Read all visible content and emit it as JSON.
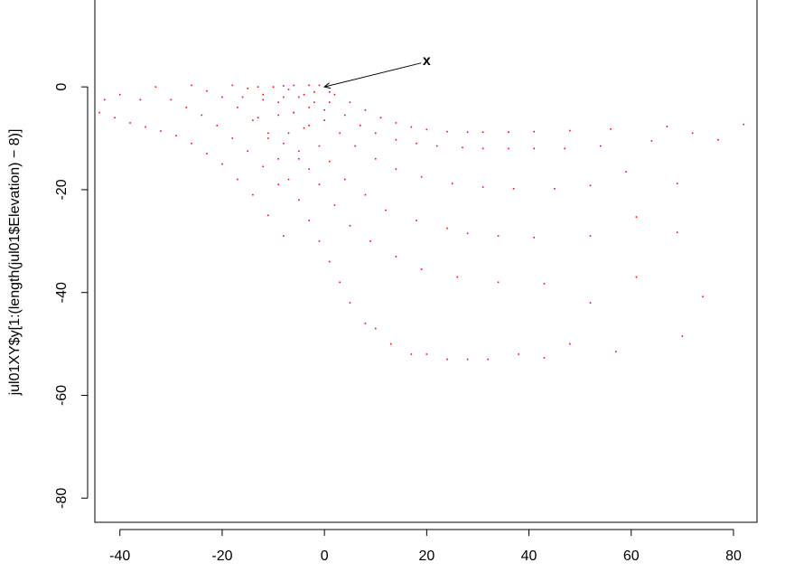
{
  "chart_data": {
    "type": "scatter",
    "ylabel": "jul01XY$y[1:(length(jul01$Elevation) − 8)]",
    "xlim": [
      -44.9,
      84.6
    ],
    "ylim": [
      -84.7,
      16.9
    ],
    "xticks": [
      -40,
      -20,
      0,
      20,
      40,
      60,
      80
    ],
    "yticks": [
      -80,
      -60,
      -40,
      -20,
      0
    ],
    "series": [
      {
        "color": "#ff0000",
        "x": [
          2,
          5,
          8,
          11,
          14,
          17,
          20,
          24,
          28,
          31,
          36,
          41,
          48,
          56,
          67,
          77,
          82,
          -2,
          1,
          4,
          7,
          10,
          14,
          18,
          22,
          27,
          31,
          36,
          41,
          47,
          54,
          64,
          72,
          -5,
          -3,
          0,
          3,
          6,
          10,
          14,
          19,
          25,
          31,
          37,
          45,
          52,
          59,
          69,
          -8,
          -6,
          -4,
          -1,
          1,
          4,
          8,
          12,
          18,
          24,
          28,
          34,
          41,
          52,
          61,
          69,
          -12,
          -9,
          -7,
          -5,
          -3,
          -1,
          2,
          5,
          9,
          14,
          19,
          26,
          34,
          43,
          52,
          61,
          74,
          -16,
          -13,
          -11,
          -9,
          -7,
          -5,
          -3,
          -1,
          1,
          3,
          5,
          8,
          10,
          13,
          17,
          20,
          24,
          28,
          32,
          38,
          43,
          48,
          57,
          70,
          -44,
          -41,
          -38,
          -35,
          -32,
          -29,
          -26,
          -23,
          -20,
          -17,
          -14,
          -11,
          -8,
          -43,
          -40,
          -36,
          -33,
          -30,
          -27,
          -24,
          -21,
          -18,
          -15,
          -12,
          -9,
          -26,
          -23,
          -20,
          -17,
          -14,
          -11,
          -8,
          -5,
          -18,
          -15,
          -12,
          -9,
          -6,
          -3,
          -13,
          -10,
          -7,
          -4,
          -2,
          0,
          -8,
          -6,
          -3,
          -1,
          1
        ],
        "y": [
          -1.5,
          -3,
          -4.5,
          -6,
          -7,
          -7.8,
          -8.3,
          -8.7,
          -8.8,
          -8.8,
          -8.8,
          -8.7,
          -8.5,
          -8.2,
          -7.7,
          -10.3,
          -7.3,
          -1,
          -3,
          -5.5,
          -7.5,
          -9,
          -10.3,
          -11,
          -11.5,
          -11.8,
          -12,
          -12,
          -12,
          -12,
          -11.5,
          -10.5,
          -9,
          -2,
          -4,
          -6.5,
          -9,
          -11.5,
          -14,
          -16,
          -17.5,
          -18.8,
          -19.5,
          -19.8,
          -19.8,
          -19.2,
          -16.5,
          -18.8,
          -2,
          -5,
          -8,
          -11.5,
          -14.5,
          -18,
          -21,
          -24,
          -26,
          -27.5,
          -28.5,
          -29,
          -29.3,
          -29,
          -25.3,
          -28.3,
          -2.5,
          -5.5,
          -9,
          -12.5,
          -16,
          -19,
          -23,
          -27,
          -30,
          -33,
          -35.5,
          -37,
          -38,
          -38.3,
          -42,
          -37,
          -40.8,
          -2,
          -6,
          -10,
          -14,
          -18,
          -22,
          -26,
          -30,
          -34,
          -38,
          -42,
          -46,
          -47,
          -50,
          -52,
          -52,
          -53,
          -53,
          -53,
          -52,
          -52.7,
          -50,
          -51.5,
          -48.5,
          -5,
          -6,
          -7,
          -7.8,
          -8.6,
          -9.5,
          -11,
          -13,
          -15,
          -18,
          -21,
          -25,
          -29,
          -2.5,
          -1.5,
          -2.5,
          0,
          -2.5,
          -4,
          -5.5,
          -7.5,
          -10,
          -12.5,
          -15.5,
          -19,
          0.3,
          -0.8,
          -2,
          -4,
          -6.5,
          -9,
          -11,
          -14,
          0.3,
          -0.3,
          -1.5,
          -3,
          -5,
          -7.5,
          0,
          0,
          -0.5,
          -1.5,
          -3,
          -4.5,
          0.2,
          0.3,
          0.3,
          0.3,
          -1
        ]
      }
    ],
    "annotation": {
      "text": "x",
      "x": 20,
      "y": 5,
      "arrow_x": 0,
      "arrow_y": 0
    }
  }
}
